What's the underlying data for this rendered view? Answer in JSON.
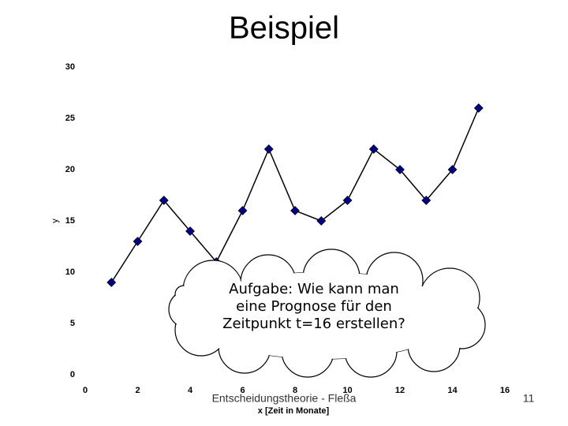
{
  "chart_data": {
    "type": "line",
    "title": "Beispiel",
    "xlabel": "x [Zeit in Monate]",
    "ylabel": "y",
    "x": [
      1,
      2,
      3,
      4,
      5,
      6,
      7,
      8,
      9,
      10,
      11,
      12,
      13,
      14,
      15
    ],
    "series": [
      {
        "name": "y",
        "color": "#000080",
        "values": [
          9,
          13,
          17,
          14,
          11,
          16,
          22,
          16,
          15,
          17,
          22,
          20,
          17,
          20,
          26
        ]
      }
    ],
    "xlim": [
      0,
      16
    ],
    "xticks": [
      0,
      2,
      4,
      6,
      8,
      10,
      12,
      14,
      16
    ],
    "ylim": [
      0,
      30
    ],
    "yticks": [
      0,
      5,
      10,
      15,
      20,
      25,
      30
    ],
    "annotation": [
      "Aufgabe: Wie kann man",
      "eine Prognose für den",
      "Zeitpunkt t=16 erstellen?"
    ]
  },
  "slide": {
    "footer": "Entscheidungstheorie - Fleßa",
    "page_number": 11
  }
}
